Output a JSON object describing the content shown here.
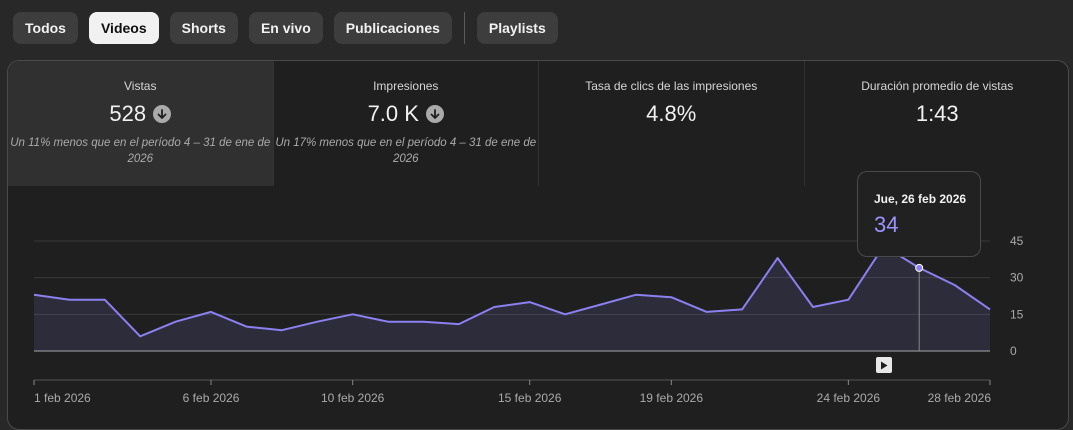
{
  "filters": {
    "chips": [
      {
        "label": "Todos",
        "active": false
      },
      {
        "label": "Videos",
        "active": true
      },
      {
        "label": "Shorts",
        "active": false
      },
      {
        "label": "En vivo",
        "active": false
      },
      {
        "label": "Publicaciones",
        "active": false
      },
      {
        "label": "Playlists",
        "active": false
      }
    ]
  },
  "metrics": [
    {
      "title": "Vistas",
      "value": "528",
      "trend_icon": "arrow-down-circle-icon",
      "note": "Un 11% menos que en el período 4 – 31 de ene de\n2026",
      "selected": true
    },
    {
      "title": "Impresiones",
      "value": "7.0 K",
      "trend_icon": "arrow-down-circle-icon",
      "note": "Un 17% menos que en el período 4 – 31 de ene de\n2026",
      "selected": false
    },
    {
      "title": "Tasa de clics de las impresiones",
      "value": "4.8%",
      "selected": false
    },
    {
      "title": "Duración promedio de vistas",
      "value": "1:43",
      "selected": false
    }
  ],
  "tooltip": {
    "date": "Jue, 26 feb 2026",
    "value": "34"
  },
  "colors": {
    "series": "#8b80f0",
    "tooltip_value": "#9d93ff",
    "background": "#1f1f1f"
  },
  "chart_data": {
    "type": "area",
    "x_tick_labels": [
      "1 feb 2026",
      "6 feb 2026",
      "10 feb 2026",
      "15 feb 2026",
      "19 feb 2026",
      "24 feb 2026",
      "28 feb 2026"
    ],
    "x_tick_days": [
      1,
      6,
      10,
      15,
      19,
      24,
      28
    ],
    "y_ticks": [
      0,
      15,
      30,
      45
    ],
    "ylim": [
      0,
      45
    ],
    "y_axis_side": "right",
    "highlighted_day": 26,
    "series": [
      {
        "days": [
          1,
          2,
          3,
          4,
          5,
          6,
          7,
          8,
          9,
          10,
          11,
          12,
          13,
          14,
          15,
          16,
          17,
          18,
          19,
          20,
          21,
          22,
          23,
          24,
          25,
          26,
          27,
          28
        ],
        "values": [
          23,
          21,
          21,
          6,
          12,
          16,
          10,
          8.5,
          12,
          15,
          12,
          12,
          11,
          18,
          20,
          15,
          19,
          23,
          22,
          16,
          17,
          38,
          18,
          21,
          43,
          34,
          27,
          17
        ]
      }
    ]
  }
}
